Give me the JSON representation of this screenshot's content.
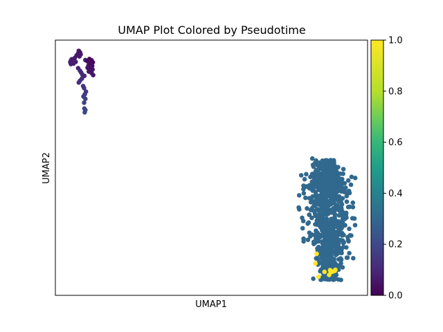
{
  "chart_data": {
    "type": "scatter",
    "title": "UMAP Plot Colored by Pseudotime",
    "xlabel": "UMAP1",
    "ylabel": "UMAP2",
    "x_ticks_shown": false,
    "y_ticks_shown": false,
    "xlim": [
      0,
      100
    ],
    "ylim": [
      0,
      100
    ],
    "colormap": "viridis",
    "colorbar": {
      "min": 0.0,
      "max": 1.0,
      "ticks": [
        "0.0",
        "0.2",
        "0.4",
        "0.6",
        "0.8",
        "1.0"
      ]
    },
    "clusters": [
      {
        "id": "top-left",
        "pseudotime_range": [
          0.0,
          0.2
        ],
        "n_points": 55,
        "x_range": [
          4,
          13
        ],
        "y_range": [
          71,
          96
        ]
      },
      {
        "id": "bottom-right",
        "pseudotime": 0.4,
        "n_points": 900,
        "x_range": [
          78,
          95
        ],
        "y_range": [
          5,
          54
        ]
      },
      {
        "id": "bottom-right-yellow",
        "pseudotime": 1.0,
        "n_points": 10,
        "x_range": [
          83,
          91
        ],
        "y_range": [
          7,
          17
        ]
      }
    ]
  },
  "colors": {
    "viridis_0": "#440154",
    "viridis_02": "#3b528b",
    "viridis_04": "#31688e",
    "viridis_06": "#21918c",
    "viridis_08": "#5ec962",
    "viridis_1": "#fde725"
  }
}
